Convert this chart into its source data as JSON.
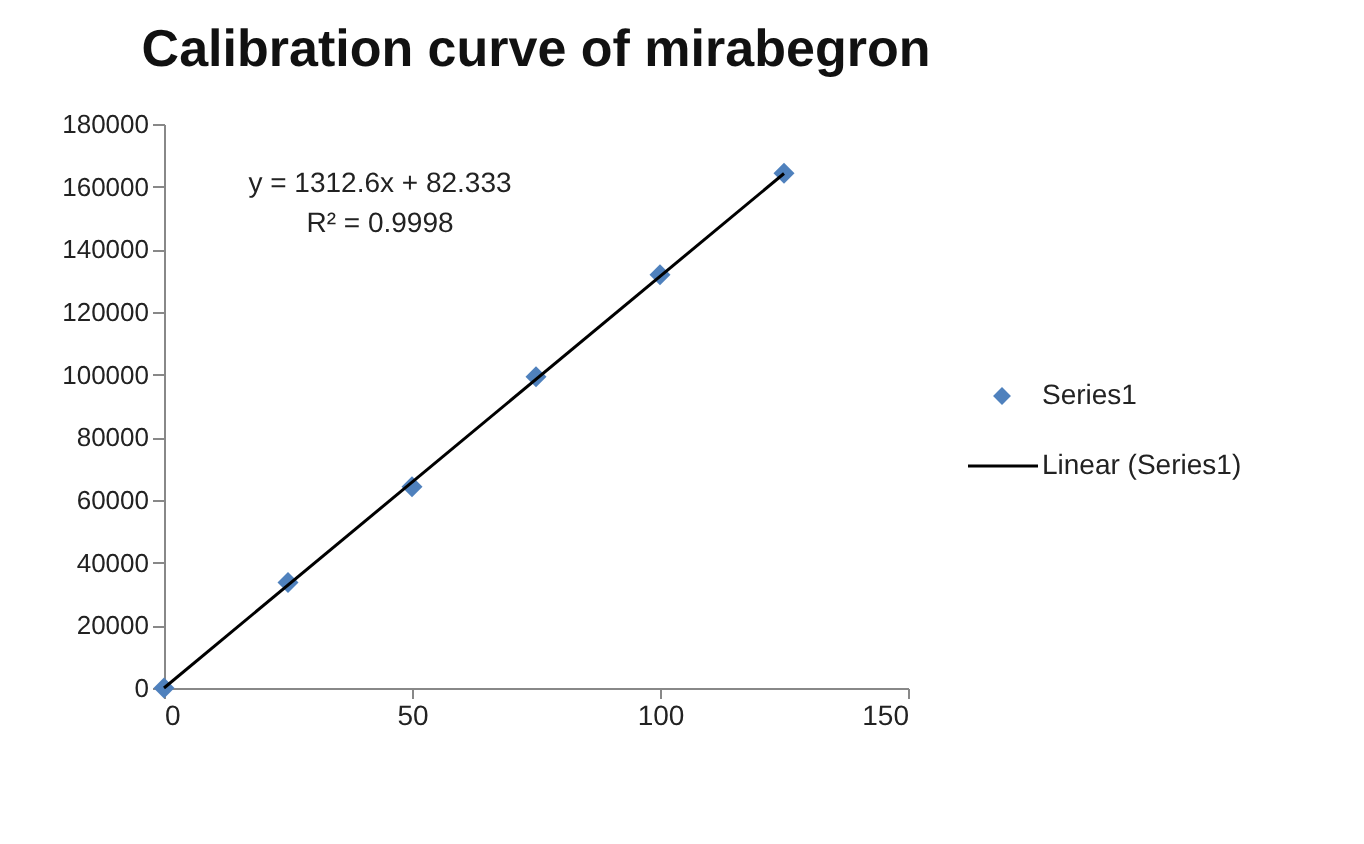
{
  "chart_data": {
    "type": "scatter",
    "title": "Calibration curve of mirabegron",
    "x": [
      0,
      25,
      50,
      75,
      100,
      125
    ],
    "series": [
      {
        "name": "Series1",
        "color": "#4f81bd",
        "marker": "diamond",
        "values": [
          0,
          33700,
          64200,
          99300,
          131900,
          164300
        ]
      },
      {
        "name": "Linear (Series1)",
        "type": "line",
        "color": "#000000",
        "marker": "none",
        "x": [
          0,
          125
        ],
        "values": [
          0,
          164200
        ]
      }
    ],
    "annotations": [
      "y = 1312.6x + 82.333",
      "R² = 0.9998"
    ],
    "xlim": [
      0,
      150
    ],
    "xticks": [
      0,
      50,
      100,
      150
    ],
    "ylim": [
      0,
      180000
    ],
    "yticks": [
      0,
      20000,
      40000,
      60000,
      80000,
      100000,
      120000,
      140000,
      160000,
      180000
    ],
    "grid": false,
    "legend": "right",
    "line_style": "solid"
  }
}
